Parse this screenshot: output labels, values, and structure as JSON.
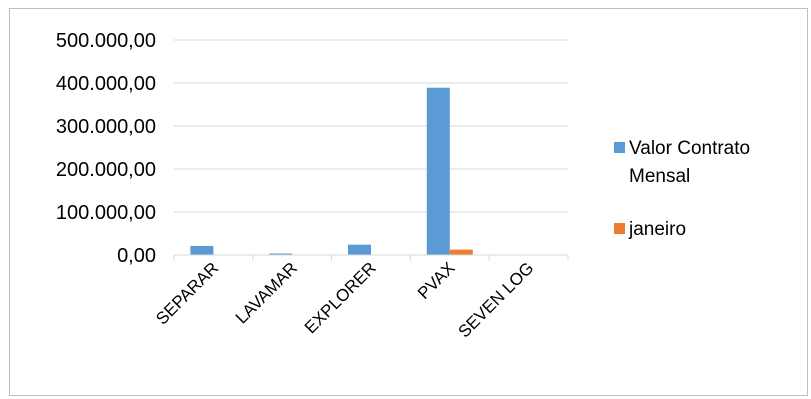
{
  "chart_data": {
    "type": "bar",
    "categories": [
      "SEPARAR",
      "LAVAMAR",
      "EXPLORER",
      "PVAX",
      "SEVEN LOG"
    ],
    "series": [
      {
        "name": "Valor Contrato Mensal",
        "color": "#5b9bd5",
        "values": [
          21000,
          2500,
          24000,
          389000,
          0
        ]
      },
      {
        "name": "janeiro",
        "color": "#ed7d31",
        "values": [
          0,
          0,
          0,
          12500,
          0
        ]
      }
    ],
    "y_ticks": [
      "0,00",
      "100.000,00",
      "200.000,00",
      "300.000,00",
      "400.000,00",
      "500.000,00"
    ],
    "ylim": [
      0,
      500000
    ],
    "grid": true,
    "legend_position": "right"
  }
}
